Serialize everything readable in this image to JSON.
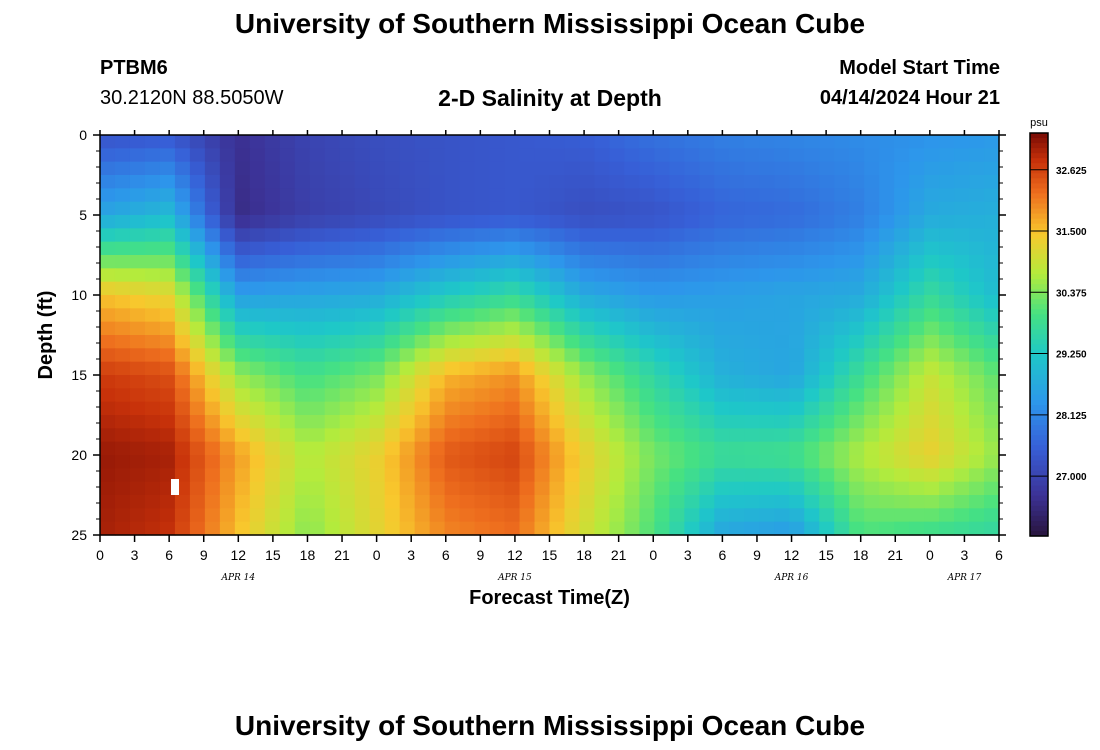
{
  "header": {
    "title": "University of Southern Mississippi Ocean Cube",
    "station_id": "PTBM6",
    "coords": "30.2120N  88.5050W",
    "subtitle": "2-D Salinity at Depth",
    "model_label": "Model Start Time",
    "model_time": "04/14/2024 Hour 21"
  },
  "footer": {
    "title": "University of Southern Mississippi Ocean Cube"
  },
  "chart_data": {
    "type": "heatmap",
    "title": "2-D Salinity at Depth",
    "xlabel": "Forecast Time(Z)",
    "ylabel": "Depth (ft)",
    "x_ticks": [
      "0",
      "3",
      "6",
      "9",
      "12",
      "15",
      "18",
      "21",
      "0",
      "3",
      "6",
      "9",
      "12",
      "15",
      "18",
      "21",
      "0",
      "3",
      "6",
      "9",
      "12",
      "15",
      "18",
      "21",
      "0",
      "3",
      "6"
    ],
    "x_range_hours": [
      0,
      78
    ],
    "date_labels": [
      {
        "text": "APR 14",
        "hour": 12
      },
      {
        "text": "APR 15",
        "hour": 36
      },
      {
        "text": "APR 16",
        "hour": 60
      },
      {
        "text": "APR 17",
        "hour": 75
      }
    ],
    "y_ticks": [
      "0",
      "5",
      "10",
      "15",
      "20",
      "25"
    ],
    "y_range_ft": [
      0,
      25
    ],
    "colorbar": {
      "unit": "psu",
      "min": 25.9,
      "max": 33.3,
      "ticks": [
        "32.625",
        "31.500",
        "30.375",
        "29.250",
        "28.125",
        "27.000"
      ]
    },
    "depth_levels_ft": [
      0,
      5,
      10,
      15,
      20,
      25
    ],
    "time_hours": [
      0,
      6,
      12,
      18,
      24,
      30,
      36,
      42,
      48,
      54,
      60,
      66,
      72,
      78
    ],
    "salinity_psu": [
      [
        27.3,
        27.4,
        26.6,
        27.0,
        27.2,
        27.3,
        27.4,
        27.5,
        27.8,
        28.0,
        28.1,
        28.2,
        28.3,
        28.4
      ],
      [
        28.6,
        29.0,
        26.5,
        26.9,
        27.1,
        27.3,
        27.4,
        27.2,
        27.3,
        27.6,
        27.7,
        28.0,
        28.7,
        28.8
      ],
      [
        31.5,
        31.2,
        28.5,
        28.6,
        28.7,
        29.3,
        29.7,
        28.7,
        28.4,
        28.5,
        28.6,
        28.7,
        29.7,
        29.0
      ],
      [
        32.7,
        32.5,
        30.5,
        29.9,
        30.3,
        31.6,
        31.9,
        30.5,
        29.6,
        28.8,
        28.6,
        29.8,
        30.9,
        30.1
      ],
      [
        33.1,
        33.0,
        31.8,
        30.7,
        31.3,
        32.4,
        32.6,
        31.3,
        30.3,
        29.8,
        29.9,
        30.7,
        31.3,
        30.5
      ],
      [
        33.0,
        32.8,
        31.5,
        30.4,
        31.2,
        32.0,
        32.2,
        31.0,
        30.0,
        28.6,
        28.4,
        30.0,
        29.8,
        29.6
      ]
    ]
  }
}
